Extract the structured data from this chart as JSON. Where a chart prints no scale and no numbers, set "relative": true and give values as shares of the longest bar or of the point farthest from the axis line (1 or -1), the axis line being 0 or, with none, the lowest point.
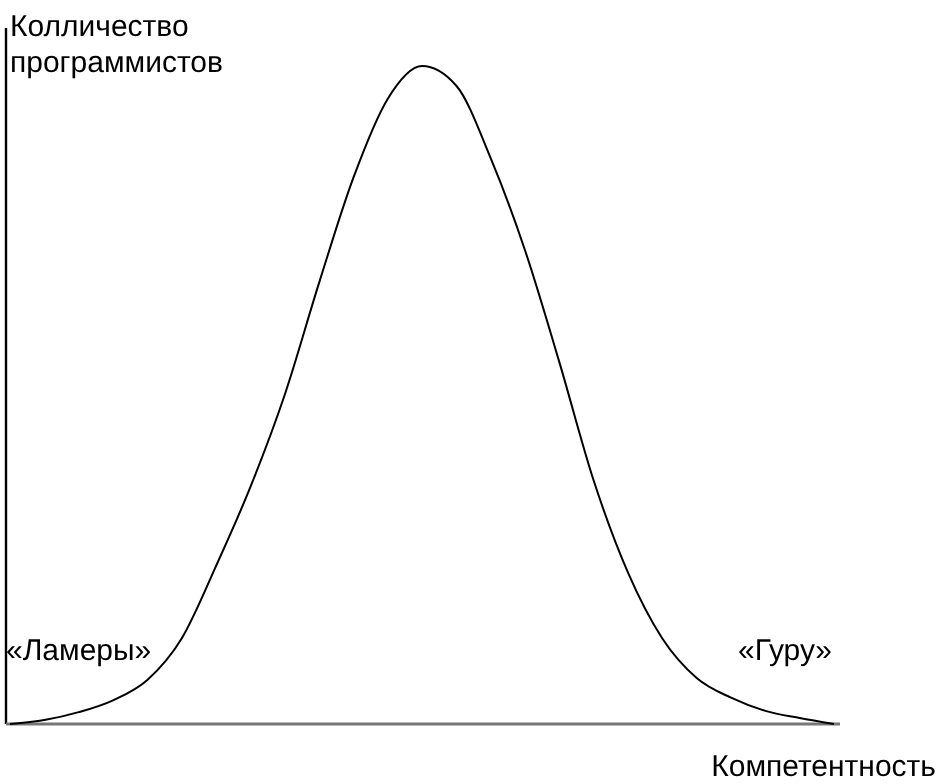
{
  "chart_data": {
    "type": "line",
    "relative": true,
    "xlabel": "Компетентность",
    "ylabel": "Колличество программистов",
    "categories": [
      null,
      null,
      null,
      null,
      null,
      null,
      null,
      null,
      null,
      null,
      null,
      null,
      null,
      null,
      null,
      null,
      null,
      null,
      null,
      null,
      null,
      null,
      null,
      null,
      null
    ],
    "series": [
      {
        "color": "#000000",
        "values": [
          0,
          0.006,
          0.018,
          0.036,
          0.067,
          0.13,
          0.24,
          0.36,
          0.5,
          0.67,
          0.83,
          0.95,
          1,
          0.97,
          0.86,
          0.72,
          0.55,
          0.37,
          0.23,
          0.13,
          0.07,
          0.04,
          0.02,
          0.009,
          0
        ]
      }
    ],
    "annotations": [
      "«Ламеры»",
      "«Гуру»"
    ],
    "marker": "none",
    "line_style": "solid"
  }
}
